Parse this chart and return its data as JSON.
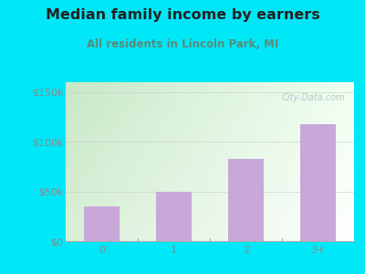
{
  "title": "Median family income by earners",
  "subtitle": "All residents in Lincoln Park, MI",
  "categories": [
    "0",
    "1",
    "2",
    "3+"
  ],
  "values": [
    35000,
    50000,
    83000,
    118000
  ],
  "bar_color": "#c8a8d8",
  "yticks": [
    0,
    50000,
    100000,
    150000
  ],
  "ytick_labels": [
    "$0",
    "$50k",
    "$100k",
    "$150k"
  ],
  "ylim": [
    0,
    160000
  ],
  "outer_bg": "#00e8f8",
  "plot_bg_topleft": "#d8f0d8",
  "plot_bg_topright": "#f5fffa",
  "plot_bg_bottomleft": "#e8f8e8",
  "plot_bg_bottomright": "#ffffff",
  "title_color": "#222222",
  "subtitle_color": "#5a8a7a",
  "tick_color": "#888888",
  "watermark_text": "City-Data.com",
  "watermark_color": "#b8c8cc",
  "title_fontsize": 11.5,
  "subtitle_fontsize": 8.5,
  "tick_fontsize": 8,
  "figsize": [
    4.0,
    3.0
  ],
  "dpi": 100
}
